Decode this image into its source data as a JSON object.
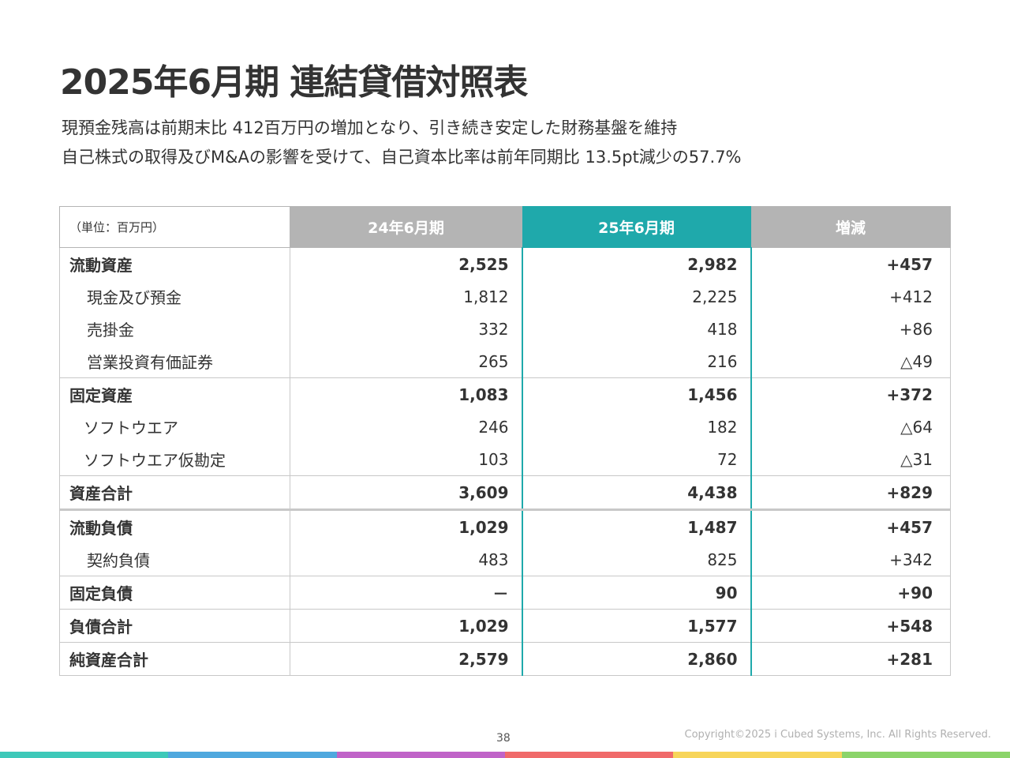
{
  "title": "2025年6月期 連結貸借対照表",
  "subtitle": [
    "現預金残高は前期末比 412百万円の増加となり、引き続き安定した財務基盤を維持",
    "自己株式の取得及びM&Aの影響を受けて、自己資本比率は前年同期比 13.5pt減少の57.7%"
  ],
  "table": {
    "unit_label": "（単位：百万円）",
    "headers": [
      "24年6月期",
      "25年6月期",
      "増減"
    ],
    "rows": [
      {
        "label": "流動資産",
        "prev": "2,525",
        "curr": "2,982",
        "diff": "+457"
      },
      {
        "label": "現金及び預金",
        "prev": "1,812",
        "curr": "2,225",
        "diff": "+412"
      },
      {
        "label": "売掛金",
        "prev": "332",
        "curr": "418",
        "diff": "+86"
      },
      {
        "label": "営業投資有価証券",
        "prev": "265",
        "curr": "216",
        "diff": "△49"
      },
      {
        "label": "固定資産",
        "prev": "1,083",
        "curr": "1,456",
        "diff": "+372"
      },
      {
        "label": "ソフトウエア",
        "prev": "246",
        "curr": "182",
        "diff": "△64"
      },
      {
        "label": "ソフトウエア仮勘定",
        "prev": "103",
        "curr": "72",
        "diff": "△31"
      },
      {
        "label": "資産合計",
        "prev": "3,609",
        "curr": "4,438",
        "diff": "+829"
      },
      {
        "label": "流動負債",
        "prev": "1,029",
        "curr": "1,487",
        "diff": "+457"
      },
      {
        "label": "契約負債",
        "prev": "483",
        "curr": "825",
        "diff": "+342"
      },
      {
        "label": "固定負債",
        "prev": "－",
        "curr": "90",
        "diff": "+90"
      },
      {
        "label": "負債合計",
        "prev": "1,029",
        "curr": "1,577",
        "diff": "+548"
      },
      {
        "label": "純資産合計",
        "prev": "2,579",
        "curr": "2,860",
        "diff": "+281"
      }
    ]
  },
  "footer": {
    "page_number": "38",
    "copyright": "Copyright©2025 i Cubed Systems, Inc. All Rights Reserved."
  },
  "colors": {
    "accent": "#1fa9ab",
    "header_gray": "#b4b4b4",
    "bar": [
      "#3ec9b9",
      "#4fa8de",
      "#c063c8",
      "#f06a6a",
      "#f7d55a",
      "#8bd46a"
    ]
  }
}
